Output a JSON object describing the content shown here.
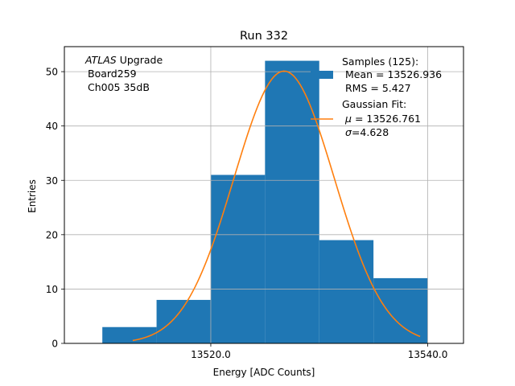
{
  "chart_data": {
    "type": "bar",
    "title": "Run 332",
    "xlabel": "Energy [ADC Counts]",
    "ylabel": "Entries",
    "xlim": [
      13506.5,
      13543.3
    ],
    "ylim": [
      0,
      54.6
    ],
    "grid": true,
    "x_ticks": [
      13520,
      13540
    ],
    "x_tick_labels": [
      "13520.0",
      "13540.0"
    ],
    "y_ticks": [
      0,
      10,
      20,
      30,
      40,
      50
    ],
    "y_tick_labels": [
      "0",
      "10",
      "20",
      "30",
      "40",
      "50"
    ],
    "bins": [
      {
        "x0": 13510,
        "x1": 13515,
        "count": 3
      },
      {
        "x0": 13515,
        "x1": 13520,
        "count": 8
      },
      {
        "x0": 13520,
        "x1": 13525,
        "count": 31
      },
      {
        "x0": 13525,
        "x1": 13530,
        "count": 52
      },
      {
        "x0": 13530,
        "x1": 13535,
        "count": 19
      },
      {
        "x0": 13535,
        "x1": 13540,
        "count": 12
      }
    ],
    "fit": {
      "mu": 13526.761,
      "sigma": 4.628,
      "amplitude": 50.1,
      "x_start": 13512.8,
      "x_end": 13539.3
    },
    "annotation": {
      "lines": [
        "Upgrade",
        "Board259",
        "Ch005 35dB"
      ],
      "italic_prefix": "ATLAS"
    },
    "legend": {
      "placement": "top-right",
      "samples": [
        "Samples (125):",
        "Mean = 13526.936",
        "RMS = 5.427"
      ],
      "fit_title": "Gaussian Fit:",
      "fit_mu": "= 13526.761",
      "fit_sigma": "=4.628"
    },
    "colors": {
      "bars": "#1f77b4",
      "fit": "#ff7f0e",
      "grid": "#b0b0b0"
    }
  }
}
